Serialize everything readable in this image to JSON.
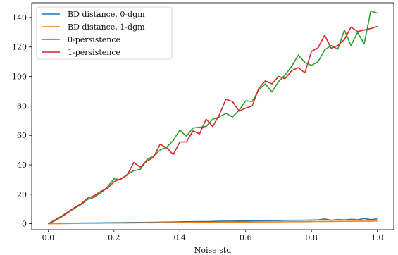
{
  "chart_data": {
    "type": "line",
    "title": "",
    "xlabel": "Noise std",
    "ylabel": "",
    "xlim": [
      -0.05,
      1.05
    ],
    "ylim": [
      -4,
      150
    ],
    "xticks": [
      0.0,
      0.2,
      0.4,
      0.6,
      0.8,
      1.0
    ],
    "xtick_labels": [
      "0.0",
      "0.2",
      "0.4",
      "0.6",
      "0.8",
      "1.0"
    ],
    "yticks": [
      0,
      20,
      40,
      60,
      80,
      100,
      120,
      140
    ],
    "ytick_labels": [
      "0",
      "20",
      "40",
      "60",
      "80",
      "100",
      "120",
      "140"
    ],
    "grid": false,
    "legend_position": "top-left",
    "x": [
      0.0,
      0.02,
      0.04,
      0.06,
      0.08,
      0.1,
      0.12,
      0.14,
      0.16,
      0.18,
      0.2,
      0.22,
      0.24,
      0.26,
      0.28,
      0.3,
      0.32,
      0.34,
      0.36,
      0.38,
      0.4,
      0.42,
      0.44,
      0.46,
      0.48,
      0.5,
      0.52,
      0.54,
      0.56,
      0.58,
      0.6,
      0.62,
      0.64,
      0.66,
      0.68,
      0.7,
      0.72,
      0.74,
      0.76,
      0.78,
      0.8,
      0.82,
      0.84,
      0.86,
      0.88,
      0.9,
      0.92,
      0.94,
      0.96,
      0.98,
      1.0
    ],
    "series": [
      {
        "name": "BD distance, 0-dgm",
        "color": "#1f77b4",
        "values": [
          0.2,
          0.25,
          0.3,
          0.35,
          0.4,
          0.45,
          0.5,
          0.55,
          0.6,
          0.65,
          0.7,
          0.75,
          0.8,
          0.85,
          0.9,
          0.95,
          1.0,
          1.05,
          1.1,
          1.2,
          1.3,
          1.35,
          1.4,
          1.45,
          1.5,
          1.6,
          1.7,
          1.75,
          1.8,
          1.85,
          1.9,
          1.95,
          2.0,
          2.05,
          2.1,
          2.2,
          2.3,
          2.35,
          2.4,
          2.45,
          2.5,
          2.6,
          3.2,
          2.4,
          2.8,
          2.6,
          3.0,
          2.7,
          3.5,
          2.8,
          3.3
        ]
      },
      {
        "name": "BD distance, 1-dgm",
        "color": "#ff7f0e",
        "values": [
          0.0,
          0.05,
          0.1,
          0.15,
          0.2,
          0.25,
          0.3,
          0.35,
          0.4,
          0.42,
          0.45,
          0.5,
          0.52,
          0.55,
          0.6,
          0.62,
          0.65,
          0.7,
          0.72,
          0.75,
          0.8,
          0.82,
          0.85,
          0.9,
          0.92,
          0.95,
          1.0,
          1.02,
          1.05,
          1.1,
          1.12,
          1.15,
          1.2,
          1.22,
          1.25,
          1.3,
          1.32,
          1.35,
          1.4,
          1.42,
          1.45,
          1.5,
          1.52,
          1.55,
          1.6,
          1.62,
          1.65,
          1.7,
          1.72,
          1.75,
          1.8
        ]
      },
      {
        "name": "0-persistence",
        "color": "#2ca02c",
        "values": [
          0.0,
          2.0,
          4.5,
          7.5,
          10.5,
          13.0,
          16.5,
          18.0,
          21.0,
          25.0,
          30.5,
          30.0,
          33.5,
          36.0,
          37.0,
          43.5,
          46.0,
          50.0,
          52.0,
          56.5,
          63.5,
          59.5,
          65.0,
          65.5,
          66.0,
          71.0,
          72.5,
          75.0,
          72.5,
          77.0,
          83.5,
          83.0,
          91.0,
          95.0,
          89.5,
          96.5,
          101.0,
          107.0,
          114.5,
          109.5,
          107.5,
          110.0,
          118.0,
          121.0,
          118.5,
          131.5,
          121.0,
          130.0,
          122.0,
          144.5,
          143.0
        ]
      },
      {
        "name": "1-persistence",
        "color": "#d62728",
        "values": [
          0.0,
          2.5,
          5.0,
          8.0,
          11.0,
          13.5,
          17.5,
          19.0,
          22.0,
          24.0,
          28.5,
          30.5,
          33.0,
          41.5,
          38.5,
          42.5,
          45.0,
          54.0,
          51.5,
          47.0,
          55.5,
          55.5,
          63.0,
          61.0,
          71.0,
          66.0,
          74.0,
          84.5,
          83.0,
          76.5,
          78.5,
          80.0,
          92.0,
          97.0,
          95.0,
          100.0,
          98.5,
          104.0,
          106.0,
          102.5,
          117.0,
          119.5,
          128.0,
          119.0,
          121.0,
          125.0,
          133.5,
          130.5,
          131.5,
          132.5,
          134.0
        ]
      }
    ]
  }
}
